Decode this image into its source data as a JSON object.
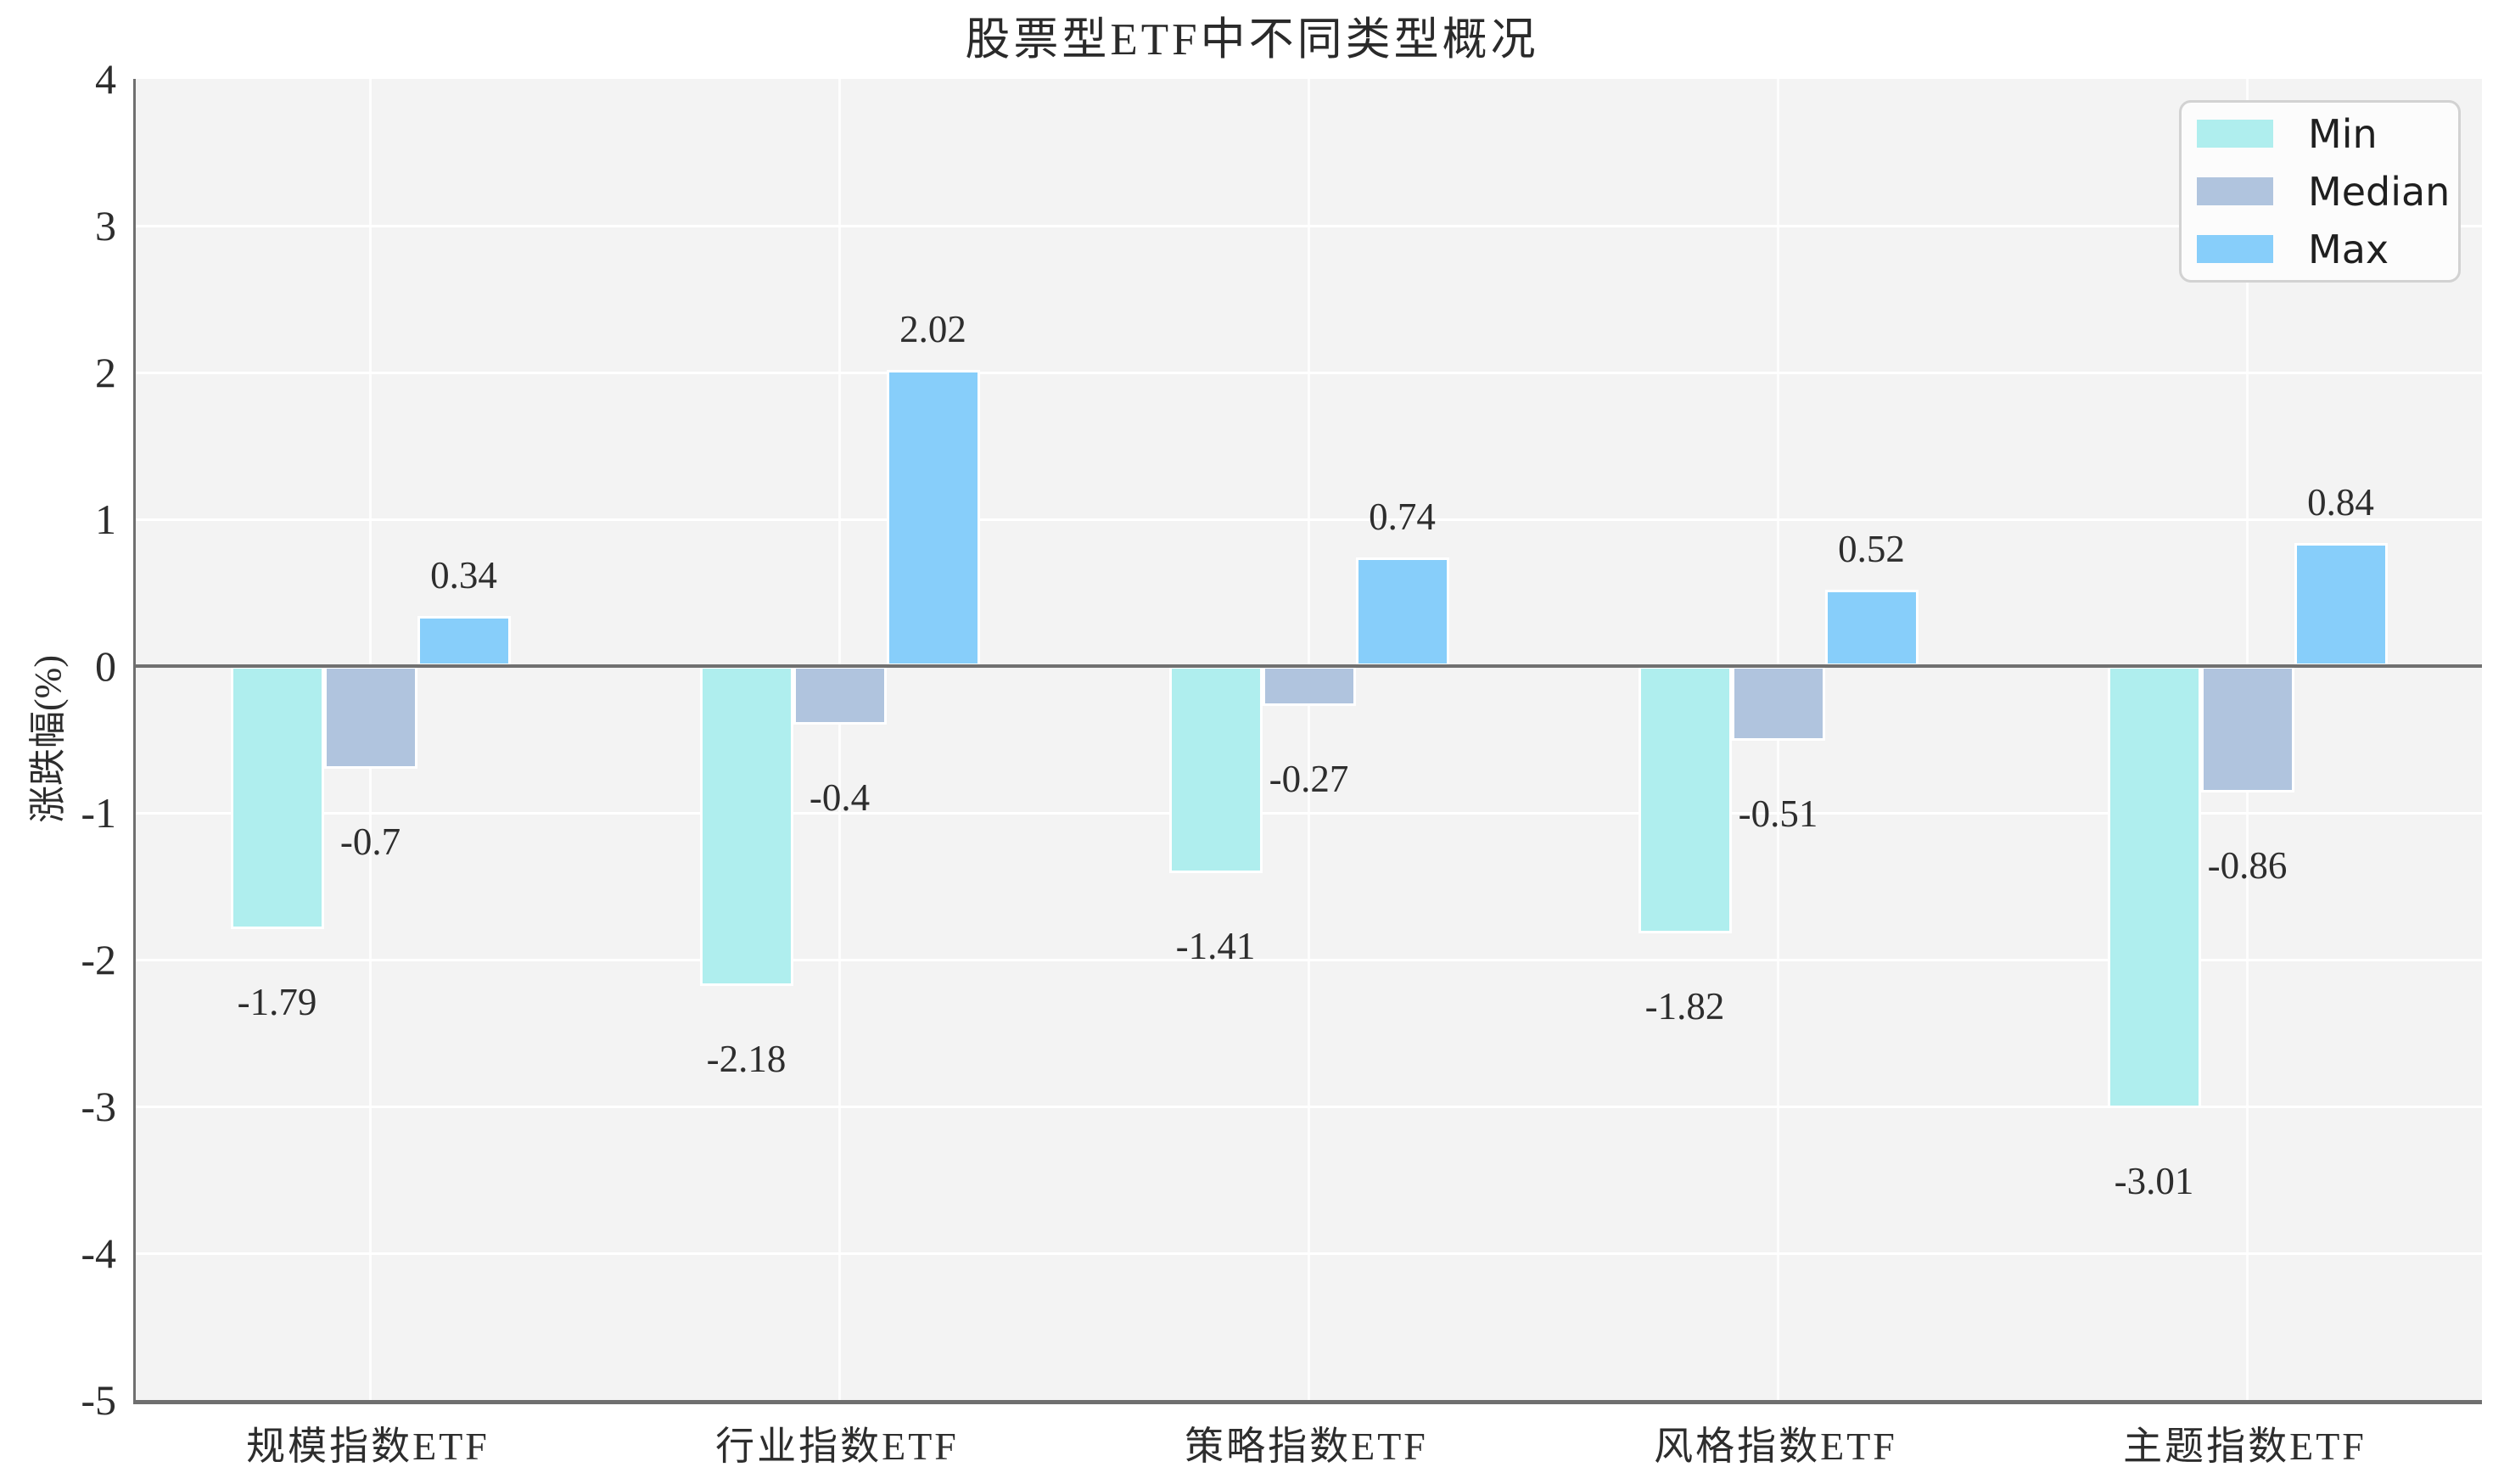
{
  "title": "股票型ETF中不同类型概况",
  "chart_data": {
    "type": "bar",
    "title": "股票型ETF中不同类型概况",
    "xlabel": "",
    "ylabel": "涨跌幅(%)",
    "categories": [
      "规模指数ETF",
      "行业指数ETF",
      "策略指数ETF",
      "风格指数ETF",
      "主题指数ETF"
    ],
    "series": [
      {
        "name": "Min",
        "color": "#AFEEEE",
        "values": [
          -1.79,
          -2.18,
          -1.41,
          -1.82,
          -3.01
        ],
        "labels": [
          "-1.79",
          "-2.18",
          "-1.41",
          "-1.82",
          "-3.01"
        ]
      },
      {
        "name": "Median",
        "color": "#B0C4DE",
        "values": [
          -0.7,
          -0.4,
          -0.27,
          -0.51,
          -0.86
        ],
        "labels": [
          "-0.7",
          "-0.4",
          "-0.27",
          "-0.51",
          "-0.86"
        ]
      },
      {
        "name": "Max",
        "color": "#87CEFA",
        "values": [
          0.34,
          2.02,
          0.74,
          0.52,
          0.84
        ],
        "labels": [
          "0.34",
          "2.02",
          "0.74",
          "0.52",
          "0.84"
        ]
      }
    ],
    "ylim": [
      -5,
      4
    ],
    "yticks": [
      "4",
      "3",
      "2",
      "1",
      "0",
      "-1",
      "-2",
      "-3",
      "-4",
      "-5"
    ],
    "grid": true,
    "legend_position": "upper right",
    "legend_entries": [
      "Min",
      "Median",
      "Max"
    ]
  },
  "colors": {
    "plot_background": "#f3f3f3",
    "grid_line": "#ffffff",
    "spine": "#6f6f6f",
    "zero_line": "#707070",
    "text": "#2d2d2d",
    "legend_border": "#d2d2d2",
    "legend_background": "#fcfcfc",
    "min_bar": "#AFEEEE",
    "median_bar": "#B0C4DE",
    "max_bar": "#87CEFA"
  }
}
